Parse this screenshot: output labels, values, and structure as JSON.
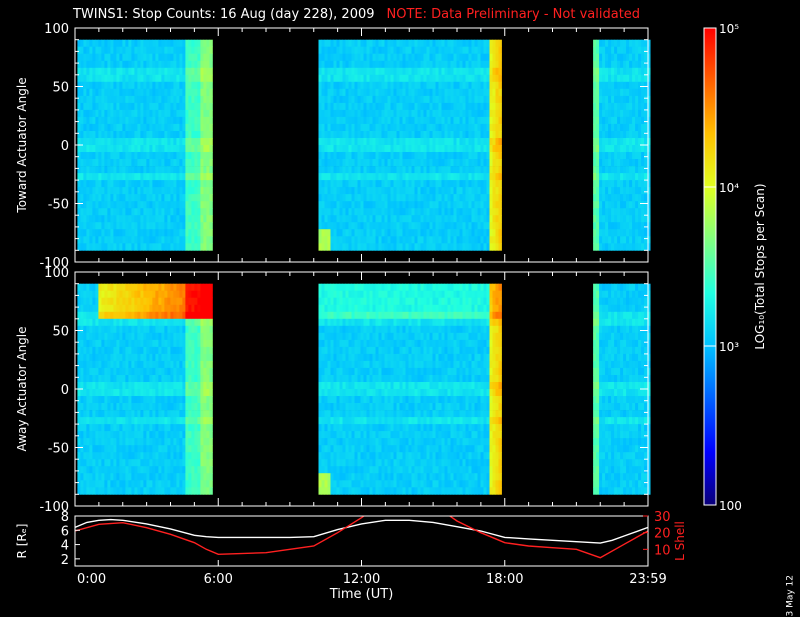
{
  "header": {
    "title": "TWINS1: Stop Counts: 16 Aug (day 228), 2009",
    "note": "NOTE: Data Preliminary - Not validated",
    "note_color": "#ff2020"
  },
  "footer": {
    "date_stamp": "3 May 12"
  },
  "chart_data": [
    {
      "type": "heatmap",
      "title": "",
      "ylabel": "Toward Actuator Angle",
      "xlim": [
        0,
        24
      ],
      "ylim": [
        -100,
        100
      ],
      "yticks": [
        -100,
        -50,
        0,
        50,
        100
      ],
      "data_y_range": [
        -90,
        90
      ],
      "data_segments_ut_hours": [
        [
          0.1,
          5.7
        ],
        [
          10.2,
          17.8
        ],
        [
          21.7,
          24
        ]
      ],
      "color_scale": "log10 counts, 100 to 100000"
    },
    {
      "type": "heatmap",
      "title": "",
      "ylabel": "Away Actuator Angle",
      "xlim": [
        0,
        24
      ],
      "ylim": [
        -100,
        100
      ],
      "yticks": [
        -100,
        -50,
        0,
        50,
        100
      ],
      "data_y_range": [
        -90,
        90
      ],
      "data_segments_ut_hours": [
        [
          0.1,
          5.7
        ],
        [
          10.2,
          17.8
        ],
        [
          21.7,
          24
        ]
      ],
      "color_scale": "log10 counts, 100 to 100000"
    },
    {
      "type": "line",
      "xlabel": "Time (UT)",
      "xlim": [
        0,
        24
      ],
      "xticks": [
        0,
        6,
        12,
        18,
        24
      ],
      "xtick_labels": [
        "0:00",
        "6:00",
        "12:00",
        "18:00",
        "23:59"
      ],
      "y_left": {
        "label": "R [Rₑ]",
        "ylim": [
          1,
          8
        ],
        "ticks": [
          2,
          4,
          6,
          8
        ],
        "color": "#ffffff"
      },
      "y_right": {
        "label": "L Shell",
        "ylim": [
          0,
          30
        ],
        "ticks": [
          10,
          20,
          30
        ],
        "color": "#ff2020"
      },
      "series": [
        {
          "axis": "left",
          "color": "#ffffff",
          "x": [
            0,
            0.5,
            1,
            1.5,
            2,
            3,
            4,
            5,
            5.5,
            6,
            7,
            8,
            9,
            10,
            11,
            12,
            13,
            14,
            15,
            16,
            17,
            18,
            19,
            20,
            21,
            22,
            22.5,
            23,
            24
          ],
          "y": [
            6.4,
            7.1,
            7.4,
            7.5,
            7.4,
            6.9,
            6.2,
            5.3,
            5.1,
            5.0,
            5.0,
            5.0,
            5.0,
            5.1,
            6.1,
            6.9,
            7.4,
            7.4,
            7.1,
            6.5,
            5.9,
            5.0,
            4.8,
            4.6,
            4.4,
            4.2,
            4.6,
            5.2,
            6.4
          ]
        },
        {
          "axis": "right",
          "color": "#ff2020",
          "x": [
            0,
            1,
            2,
            3,
            4,
            5,
            5.5,
            6,
            8,
            10,
            11,
            12,
            12.2,
            15.6,
            16,
            17,
            18,
            19,
            20,
            21,
            22,
            23,
            24
          ],
          "y": [
            21,
            25,
            26,
            23,
            19,
            14,
            10,
            7,
            8,
            12,
            20,
            29,
            31,
            31,
            27,
            20,
            14,
            12,
            11,
            10,
            5,
            13,
            21
          ]
        }
      ]
    }
  ],
  "colorbar": {
    "label": "LOG₁₀(Total Stops per Scan)",
    "tick_labels": [
      "100",
      "10³",
      "10⁴",
      "10⁵"
    ],
    "tick_values": [
      100,
      1000,
      10000,
      100000
    ],
    "stops": [
      "#0a0078",
      "#0000ff",
      "#0060ff",
      "#00c0ff",
      "#20ffe0",
      "#80ff80",
      "#e0ff20",
      "#ffc000",
      "#ff6000",
      "#ff0000"
    ]
  }
}
